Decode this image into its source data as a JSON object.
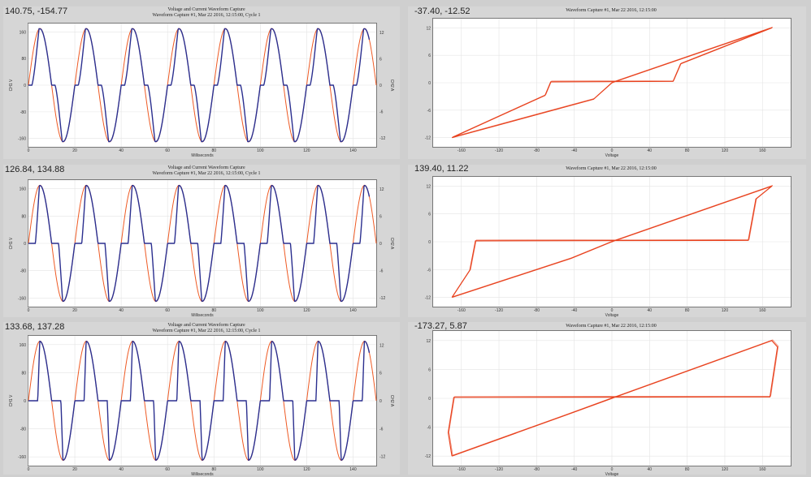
{
  "colors": {
    "voltage": "#ee5a24",
    "current": "#2b2f8f",
    "loop": "#e8401c",
    "grid": "#e4e4e4"
  },
  "panels": [
    {
      "row": 0,
      "kind": "waveform",
      "readout": "140.75, -154.77",
      "title": "Voltage and Current Waveform Capture",
      "subtitle": "Waveform Capture #1, Mar 22 2016, 12:15:00, Cycle 1",
      "xlabel": "Milliseconds",
      "ylabel_left": "CH1 V",
      "ylabel_right": "CH2 A",
      "chart_data": {
        "type": "line",
        "x_ticks": [
          0,
          20,
          40,
          60,
          80,
          100,
          120,
          140
        ],
        "xlim": [
          0,
          150
        ],
        "y_left_ticks": [
          -160,
          -80,
          0,
          80,
          160
        ],
        "ylim_left": [
          -185,
          185
        ],
        "y_right_ticks": [
          -12,
          -6,
          0,
          6,
          12
        ],
        "ylim_right": [
          -14,
          14
        ],
        "freq_hz": 50,
        "cycles_shown": 7.5,
        "series": [
          {
            "axis": "left",
            "shape": "sine",
            "amplitude": 170
          },
          {
            "axis": "right",
            "shape": "clipped-sine",
            "amplitude": 12.8,
            "dead_zone_fraction": 0.15
          }
        ]
      }
    },
    {
      "row": 0,
      "kind": "loop",
      "readout": "-37.40, -12.52",
      "subtitle": "Waveform Capture #1, Mar 22 2016, 12:15:00",
      "xlabel": "Voltage",
      "chart_data": {
        "type": "line",
        "x_ticks": [
          -160,
          -120,
          -80,
          -40,
          0,
          40,
          80,
          120,
          160
        ],
        "xlim": [
          -190,
          190
        ],
        "y_ticks": [
          -12,
          -6,
          0,
          6,
          12
        ],
        "ylim": [
          -14,
          14
        ],
        "series": [
          {
            "name": "",
            "loop": {
              "v_peak": 170,
              "i_peak": 12,
              "knee_v": 65
            }
          }
        ]
      }
    },
    {
      "row": 1,
      "kind": "waveform",
      "readout": "126.84, 134.88",
      "title": "Voltage and Current Waveform Capture",
      "subtitle": "Waveform Capture #1, Mar 22 2016, 12:15:00, Cycle 1",
      "xlabel": "Milliseconds",
      "ylabel_left": "CH1 V",
      "ylabel_right": "CH2 A",
      "chart_data": {
        "type": "line",
        "x_ticks": [
          0,
          20,
          40,
          60,
          80,
          100,
          120,
          140
        ],
        "xlim": [
          0,
          150
        ],
        "y_left_ticks": [
          -160,
          -80,
          0,
          80,
          160
        ],
        "ylim_left": [
          -185,
          185
        ],
        "y_right_ticks": [
          -12,
          -6,
          0,
          6,
          12
        ],
        "ylim_right": [
          -14,
          14
        ],
        "freq_hz": 50,
        "cycles_shown": 7.5,
        "series": [
          {
            "axis": "left",
            "shape": "sine",
            "amplitude": 170
          },
          {
            "axis": "right",
            "shape": "clipped-sine",
            "amplitude": 12.8,
            "dead_zone_fraction": 0.3
          }
        ]
      }
    },
    {
      "row": 1,
      "kind": "loop",
      "readout": "139.40, 11.22",
      "subtitle": "Waveform Capture #1, Mar 22 2016, 12:15:00",
      "xlabel": "Voltage",
      "chart_data": {
        "type": "line",
        "x_ticks": [
          -160,
          -120,
          -80,
          -40,
          0,
          40,
          80,
          120,
          160
        ],
        "xlim": [
          -190,
          190
        ],
        "y_ticks": [
          -12,
          -6,
          0,
          6,
          12
        ],
        "ylim": [
          -14,
          14
        ],
        "series": [
          {
            "name": "",
            "loop": {
              "v_peak": 170,
              "i_peak": 12,
              "knee_v": 145
            }
          }
        ]
      }
    },
    {
      "row": 2,
      "kind": "waveform",
      "readout": "133.68, 137.28",
      "title": "Voltage and Current Waveform Capture",
      "subtitle": "Waveform Capture #1, Mar 22 2016, 12:15:00, Cycle 1",
      "xlabel": "Milliseconds",
      "ylabel_left": "CH1 V",
      "ylabel_right": "CH2 A",
      "chart_data": {
        "type": "line",
        "x_ticks": [
          0,
          20,
          40,
          60,
          80,
          100,
          120,
          140
        ],
        "xlim": [
          0,
          150
        ],
        "y_left_ticks": [
          -160,
          -80,
          0,
          80,
          160
        ],
        "ylim_left": [
          -185,
          185
        ],
        "y_right_ticks": [
          -12,
          -6,
          0,
          6,
          12
        ],
        "ylim_right": [
          -14,
          14
        ],
        "freq_hz": 50,
        "cycles_shown": 7.5,
        "series": [
          {
            "axis": "left",
            "shape": "sine",
            "amplitude": 170
          },
          {
            "axis": "right",
            "shape": "clipped-sine",
            "amplitude": 12.8,
            "dead_zone_fraction": 0.4
          }
        ]
      }
    },
    {
      "row": 2,
      "kind": "loop",
      "readout": "-173.27, 5.87",
      "subtitle": "Waveform Capture #1, Mar 22 2016, 12:15:00",
      "xlabel": "Voltage",
      "chart_data": {
        "type": "line",
        "x_ticks": [
          -160,
          -120,
          -80,
          -40,
          0,
          40,
          80,
          120,
          160
        ],
        "xlim": [
          -190,
          190
        ],
        "y_ticks": [
          -12,
          -6,
          0,
          6,
          12
        ],
        "ylim": [
          -14,
          14
        ],
        "series": [
          {
            "name": "",
            "loop": {
              "v_peak": 170,
              "i_peak": 12,
              "knee_v": 168
            }
          }
        ]
      }
    }
  ]
}
